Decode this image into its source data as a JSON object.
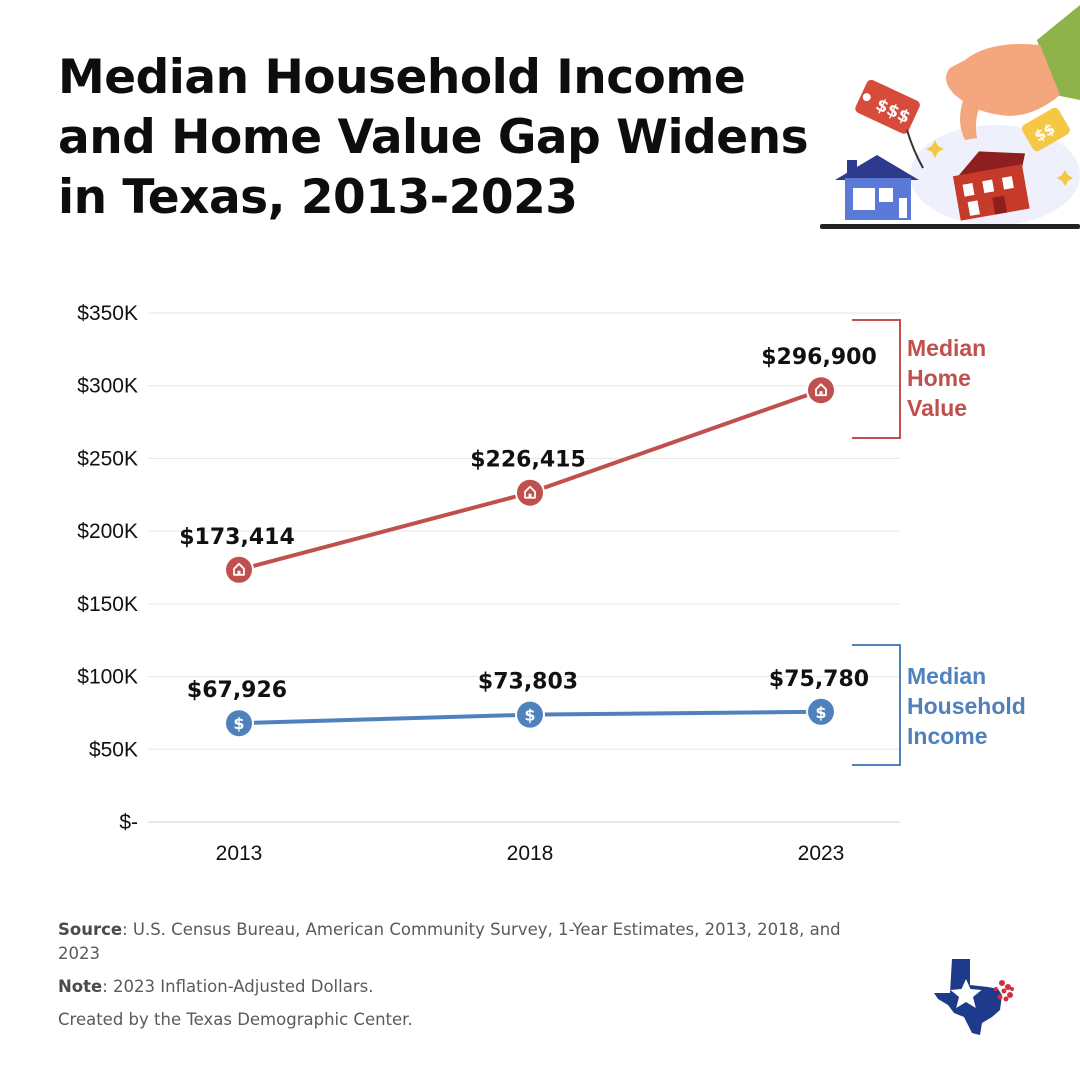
{
  "title_lines": [
    "Median Household Income",
    "and Home Value Gap Widens",
    "in Texas, 2013-2023"
  ],
  "chart_data": {
    "type": "line",
    "categories": [
      "2013",
      "2018",
      "2023"
    ],
    "ylim": [
      0,
      350000
    ],
    "y_ticks": [
      {
        "value": 350000,
        "label": "$350K"
      },
      {
        "value": 300000,
        "label": "$300K"
      },
      {
        "value": 250000,
        "label": "$250K"
      },
      {
        "value": 200000,
        "label": "$200K"
      },
      {
        "value": 150000,
        "label": "$150K"
      },
      {
        "value": 100000,
        "label": "$100K"
      },
      {
        "value": 50000,
        "label": "$50K"
      },
      {
        "value": 0,
        "label": "$-"
      }
    ],
    "grid": true,
    "series": [
      {
        "name": "Median Home Value",
        "legend_lines": [
          "Median",
          "Home",
          "Value"
        ],
        "color": "#c0504d",
        "marker_icon": "house-icon",
        "values": [
          173414,
          226415,
          296900
        ],
        "labels": [
          "$173,414",
          "$226,415",
          "$296,900"
        ]
      },
      {
        "name": "Median Household Income",
        "legend_lines": [
          "Median",
          "Household",
          "Income"
        ],
        "color": "#4f81bd",
        "marker_icon": "dollar-icon",
        "values": [
          67926,
          73803,
          75780
        ],
        "labels": [
          "$67,926",
          "$73,803",
          "$75,780"
        ]
      }
    ]
  },
  "footer": {
    "source_label": "Source",
    "source_text": ": U.S. Census Bureau, American Community Survey, 1-Year Estimates, 2013, 2018, and 2023",
    "note_label": "Note",
    "note_text": ": 2023 Inflation-Adjusted Dollars.",
    "credit": "Created by the Texas Demographic Center."
  },
  "icons": {
    "illustration": "hand-placing-house-with-price-tags-illustration",
    "logo": "texas-demographic-center-logo"
  }
}
